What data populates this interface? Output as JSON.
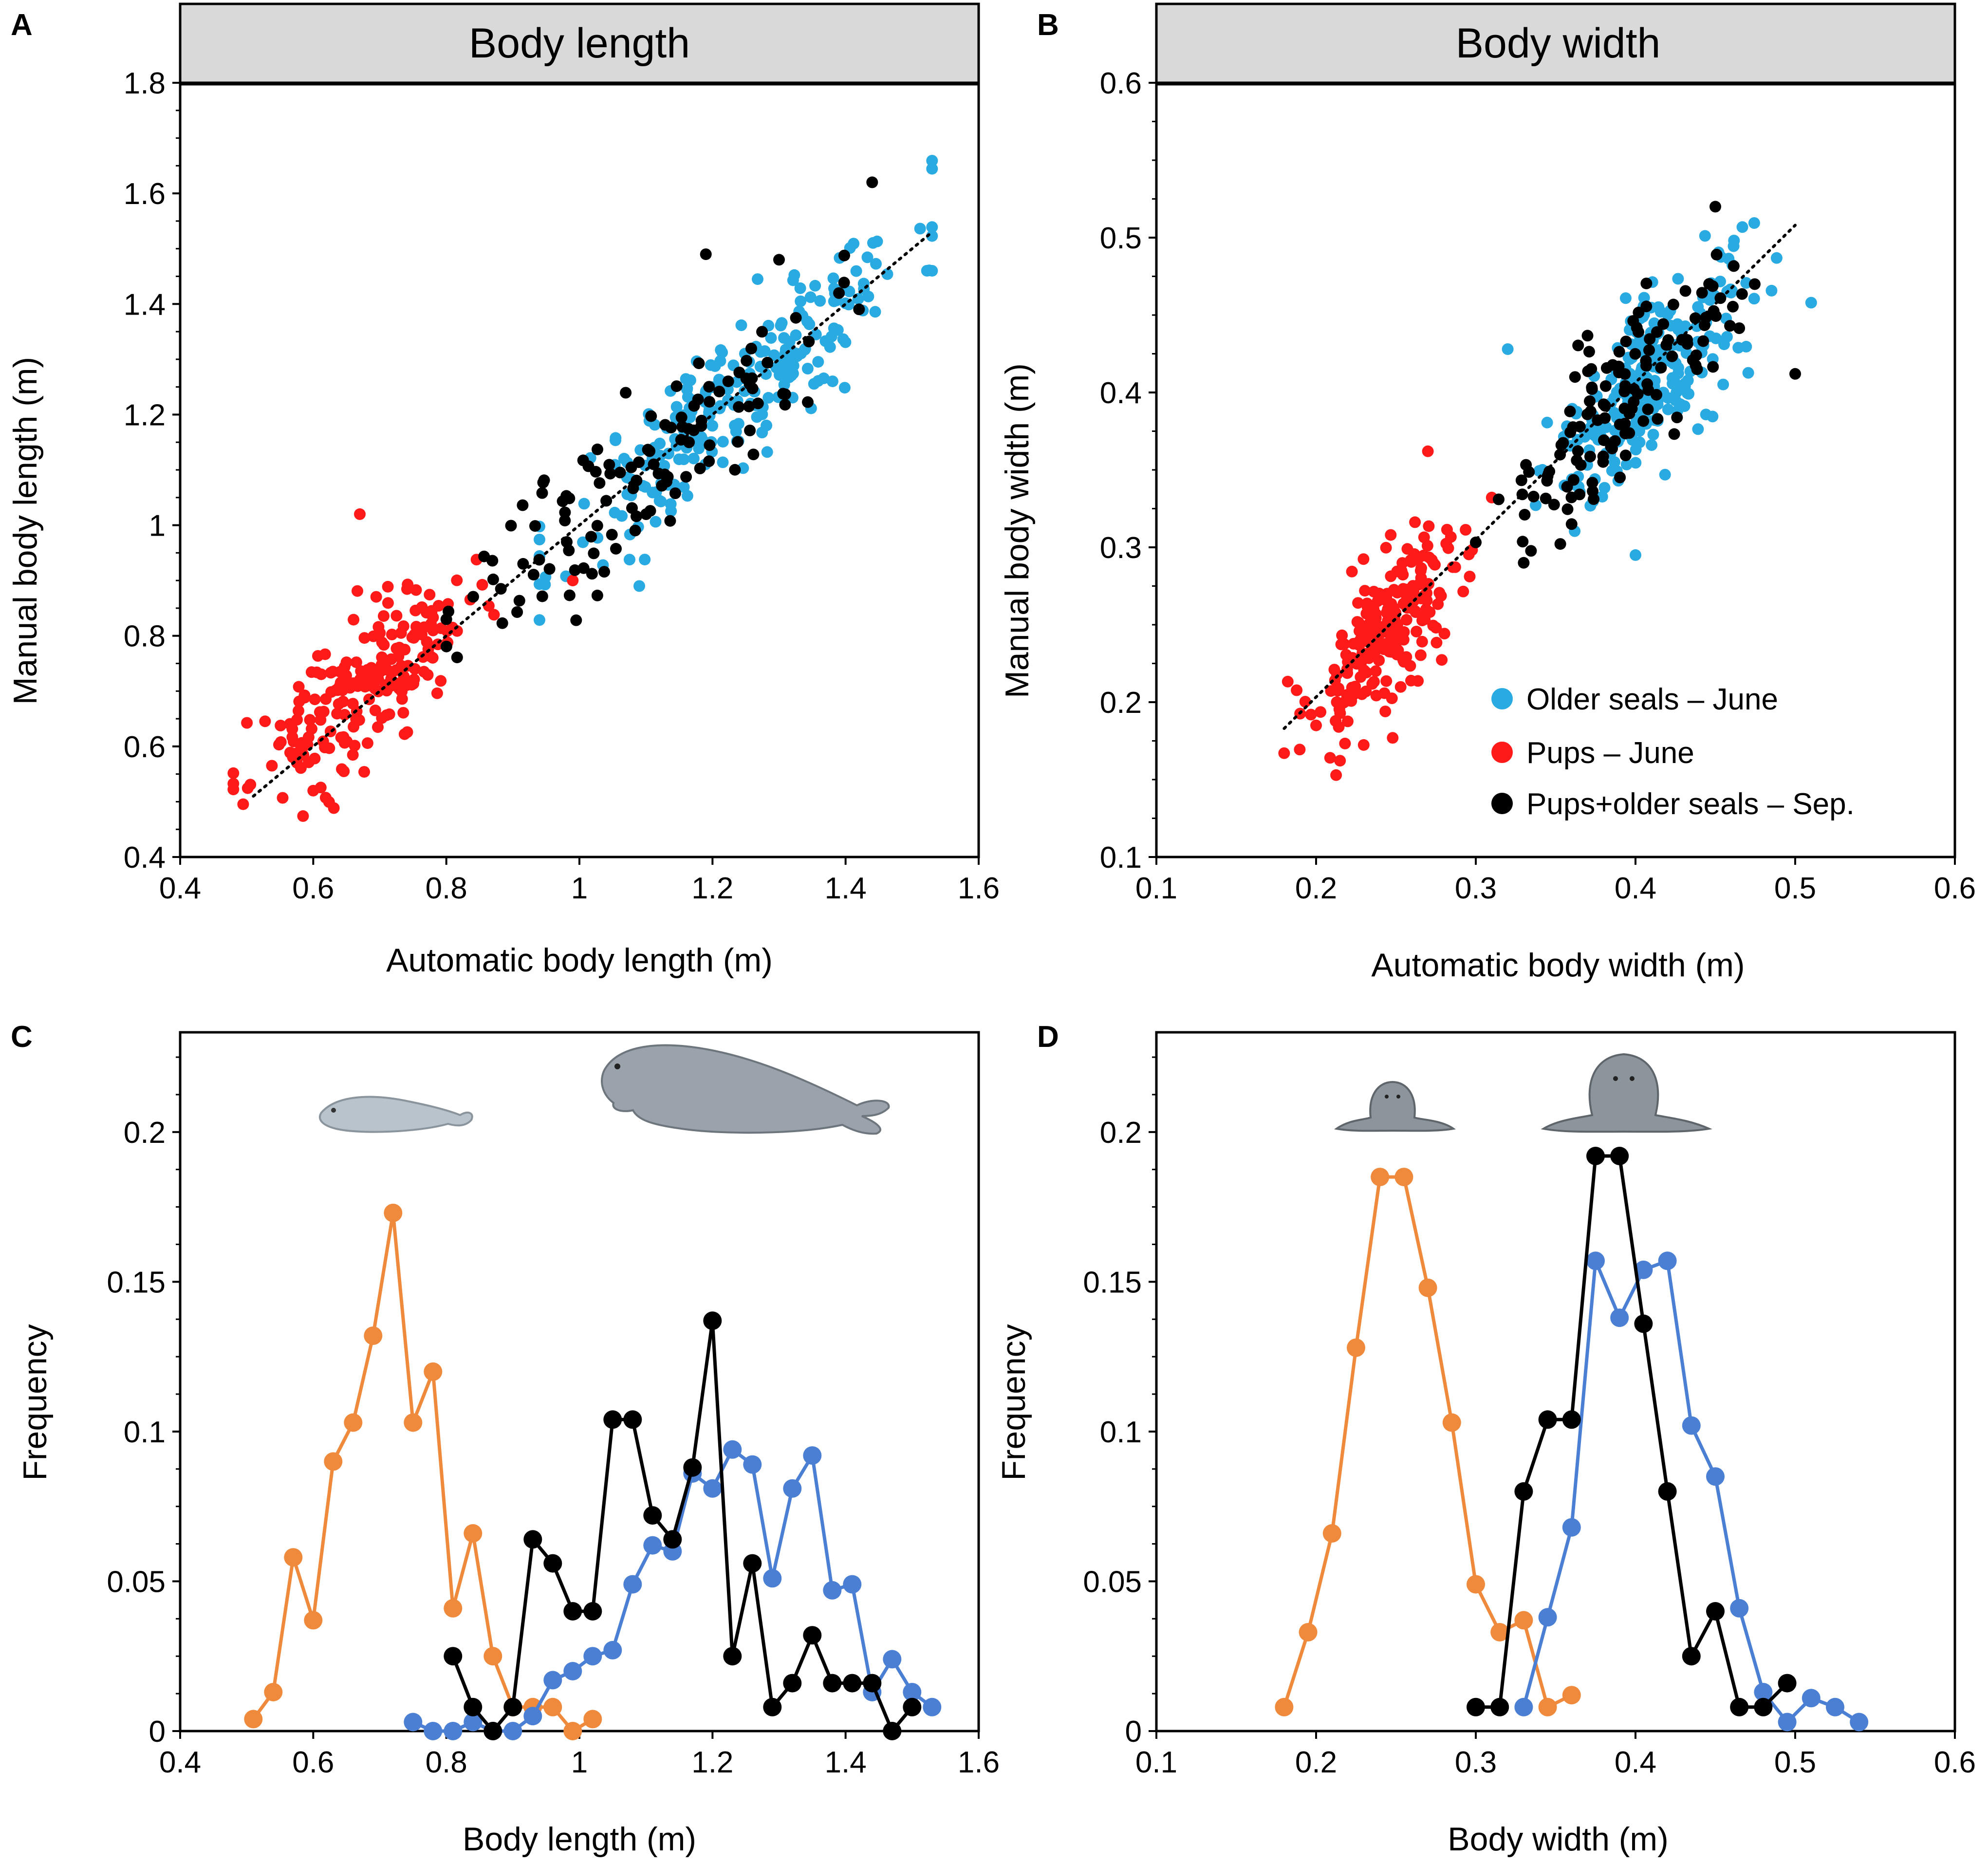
{
  "colors": {
    "older_june": "#29abe2",
    "pups_june": "#ff1a1a",
    "sep": "#000000",
    "hist_pups": "#ef8a3c",
    "hist_older": "#4a7fd4",
    "hist_sep": "#000000",
    "title_box": "#d9d9d9"
  },
  "chart_data": [
    {
      "panel": "A",
      "type": "scatter",
      "title": "Body length",
      "xlabel": "Automatic body length (m)",
      "ylabel": "Manual body length (m)",
      "xlim": [
        0.4,
        1.6
      ],
      "ylim": [
        0.4,
        1.8
      ],
      "xticks": [
        0.4,
        0.6,
        0.8,
        1,
        1.2,
        1.4,
        1.6
      ],
      "xtick_labels": [
        "0.4",
        "0.6",
        "0.8",
        "1",
        "1.2",
        "1.4",
        "1.6"
      ],
      "yticks": [
        0.4,
        0.6,
        0.8,
        1,
        1.2,
        1.4,
        1.6,
        1.8
      ],
      "ytick_labels": [
        "0.4",
        "0.6",
        "0.8",
        "1",
        "1.2",
        "1.4",
        "1.6",
        "1.8"
      ],
      "reference_line": {
        "style": "dotted",
        "x": [
          0.51,
          1.53
        ],
        "y": [
          0.51,
          1.53
        ]
      },
      "series": [
        {
          "name": "Older seals – June",
          "color_key": "older_june",
          "count": 250,
          "x_range": [
            0.94,
            1.53
          ],
          "mean_x": 1.24,
          "sd_x": 0.13,
          "noise": 0.065,
          "slope": 1.0,
          "intercept": 0.0,
          "seed": 11,
          "outliers": [
            [
              1.09,
              0.89
            ]
          ]
        },
        {
          "name": "Pups – June",
          "color_key": "pups_june",
          "count": 210,
          "x_range": [
            0.48,
            0.89
          ],
          "mean_x": 0.67,
          "sd_x": 0.08,
          "noise": 0.06,
          "slope": 0.85,
          "intercept": 0.13,
          "seed": 23,
          "outliers": [
            [
              0.67,
              1.02
            ],
            [
              0.6,
              0.52
            ],
            [
              0.99,
              0.9
            ]
          ]
        },
        {
          "name": "Pups+older seals – Sep.",
          "color_key": "sep",
          "count": 120,
          "x_range": [
            0.8,
            1.5
          ],
          "mean_x": 1.1,
          "sd_x": 0.14,
          "noise": 0.07,
          "slope": 1.0,
          "intercept": 0.0,
          "seed": 37,
          "outliers": [
            [
              1.44,
              1.62
            ],
            [
              1.19,
              1.49
            ],
            [
              1.3,
              1.48
            ]
          ]
        }
      ]
    },
    {
      "panel": "B",
      "type": "scatter",
      "title": "Body width",
      "xlabel": "Automatic body width (m)",
      "ylabel": "Manual body width (m)",
      "xlim": [
        0.1,
        0.6
      ],
      "ylim": [
        0.1,
        0.6
      ],
      "xticks": [
        0.1,
        0.2,
        0.3,
        0.4,
        0.5,
        0.6
      ],
      "xtick_labels": [
        "0.1",
        "0.2",
        "0.3",
        "0.4",
        "0.5",
        "0.6"
      ],
      "yticks": [
        0.1,
        0.2,
        0.3,
        0.4,
        0.5,
        0.6
      ],
      "ytick_labels": [
        "0.1",
        "0.2",
        "0.3",
        "0.4",
        "0.5",
        "0.6"
      ],
      "reference_line": {
        "style": "dotted",
        "x": [
          0.18,
          0.5
        ],
        "y": [
          0.183,
          0.508
        ]
      },
      "legend": {
        "placement": "bottom-right",
        "entries": [
          {
            "label": "Older seals – June",
            "color_key": "older_june"
          },
          {
            "label": "Pups – June",
            "color_key": "pups_june"
          },
          {
            "label": "Pups+older seals – Sep.",
            "color_key": "sep"
          }
        ]
      },
      "series": [
        {
          "name": "Older seals – June",
          "color_key": "older_june",
          "count": 260,
          "x_range": [
            0.33,
            0.51
          ],
          "mean_x": 0.41,
          "sd_x": 0.03,
          "noise": 0.025,
          "slope": 1.0,
          "intercept": 0.0,
          "seed": 41,
          "outliers": [
            [
              0.4,
              0.295
            ],
            [
              0.32,
              0.428
            ],
            [
              0.51,
              0.458
            ]
          ]
        },
        {
          "name": "Pups – June",
          "color_key": "pups_june",
          "count": 230,
          "x_range": [
            0.18,
            0.31
          ],
          "mean_x": 0.245,
          "sd_x": 0.025,
          "noise": 0.025,
          "slope": 1.0,
          "intercept": 0.0,
          "seed": 53,
          "outliers": [
            [
              0.27,
              0.362
            ],
            [
              0.2,
              0.185
            ]
          ]
        },
        {
          "name": "Pups+older seals – Sep.",
          "color_key": "sep",
          "count": 130,
          "x_range": [
            0.3,
            0.5
          ],
          "mean_x": 0.39,
          "sd_x": 0.035,
          "noise": 0.025,
          "slope": 1.0,
          "intercept": 0.0,
          "seed": 67,
          "outliers": [
            [
              0.45,
              0.52
            ],
            [
              0.5,
              0.412
            ],
            [
              0.36,
              0.315
            ],
            [
              0.33,
              0.29
            ]
          ]
        }
      ]
    },
    {
      "panel": "C",
      "type": "line",
      "xlabel": "Body length (m)",
      "ylabel": "Frequency",
      "xlim": [
        0.4,
        1.6
      ],
      "ylim": [
        0,
        0.2333
      ],
      "xticks": [
        0.4,
        0.6,
        0.8,
        1,
        1.2,
        1.4,
        1.6
      ],
      "xtick_labels": [
        "0.4",
        "0.6",
        "0.8",
        "1",
        "1.2",
        "1.4",
        "1.6"
      ],
      "yticks": [
        0,
        0.05,
        0.1,
        0.15,
        0.2
      ],
      "ytick_labels": [
        "0",
        "0.05",
        "0.1",
        "0.15",
        "0.2"
      ],
      "icons": [
        "seal-pup-side",
        "adult-seal-side"
      ],
      "series": [
        {
          "name": "Pups – June",
          "color_key": "hist_pups",
          "x": [
            0.51,
            0.54,
            0.57,
            0.6,
            0.63,
            0.66,
            0.69,
            0.72,
            0.75,
            0.78,
            0.81,
            0.84,
            0.87,
            0.9,
            0.93,
            0.96,
            0.99,
            1.02
          ],
          "y": [
            0.004,
            0.013,
            0.058,
            0.037,
            0.09,
            0.103,
            0.132,
            0.173,
            0.103,
            0.12,
            0.041,
            0.066,
            0.025,
            0.008,
            0.008,
            0.008,
            0.0,
            0.004
          ]
        },
        {
          "name": "Older seals – June",
          "color_key": "hist_older",
          "x": [
            0.75,
            0.78,
            0.81,
            0.84,
            0.87,
            0.9,
            0.93,
            0.96,
            0.99,
            1.02,
            1.05,
            1.08,
            1.11,
            1.14,
            1.17,
            1.2,
            1.23,
            1.26,
            1.29,
            1.32,
            1.35,
            1.38,
            1.41,
            1.44,
            1.47,
            1.5,
            1.53
          ],
          "y": [
            0.003,
            0.0,
            0.0,
            0.003,
            0.0,
            0.0,
            0.005,
            0.017,
            0.02,
            0.025,
            0.027,
            0.049,
            0.062,
            0.06,
            0.086,
            0.081,
            0.094,
            0.089,
            0.051,
            0.081,
            0.092,
            0.047,
            0.049,
            0.013,
            0.024,
            0.013,
            0.008
          ]
        },
        {
          "name": "Pups+older seals – Sep.",
          "color_key": "hist_sep",
          "x": [
            0.81,
            0.84,
            0.87,
            0.9,
            0.93,
            0.96,
            0.99,
            1.02,
            1.05,
            1.08,
            1.11,
            1.14,
            1.17,
            1.2,
            1.23,
            1.26,
            1.29,
            1.32,
            1.35,
            1.38,
            1.41,
            1.44,
            1.47,
            1.5
          ],
          "y": [
            0.025,
            0.008,
            0.0,
            0.008,
            0.064,
            0.056,
            0.04,
            0.04,
            0.104,
            0.104,
            0.072,
            0.064,
            0.088,
            0.137,
            0.025,
            0.056,
            0.008,
            0.016,
            0.032,
            0.016,
            0.016,
            0.016,
            0.0,
            0.008
          ]
        }
      ]
    },
    {
      "panel": "D",
      "type": "line",
      "xlabel": "Body width (m)",
      "ylabel": "Frequency",
      "xlim": [
        0.1,
        0.6
      ],
      "ylim": [
        0,
        0.2333
      ],
      "xticks": [
        0.1,
        0.2,
        0.3,
        0.4,
        0.5,
        0.6
      ],
      "xtick_labels": [
        "0.1",
        "0.2",
        "0.3",
        "0.4",
        "0.5",
        "0.6"
      ],
      "yticks": [
        0,
        0.05,
        0.1,
        0.15,
        0.2
      ],
      "ytick_labels": [
        "0",
        "0.05",
        "0.1",
        "0.15",
        "0.2"
      ],
      "icons": [
        "seal-pup-front",
        "adult-seal-front"
      ],
      "series": [
        {
          "name": "Pups – June",
          "color_key": "hist_pups",
          "x": [
            0.18,
            0.195,
            0.21,
            0.225,
            0.24,
            0.255,
            0.27,
            0.285,
            0.3,
            0.315,
            0.33,
            0.345,
            0.36
          ],
          "y": [
            0.008,
            0.033,
            0.066,
            0.128,
            0.185,
            0.185,
            0.148,
            0.103,
            0.049,
            0.033,
            0.037,
            0.008,
            0.012
          ]
        },
        {
          "name": "Older seals – June",
          "color_key": "hist_older",
          "x": [
            0.33,
            0.345,
            0.36,
            0.375,
            0.39,
            0.405,
            0.42,
            0.435,
            0.45,
            0.465,
            0.48,
            0.495,
            0.51,
            0.525,
            0.54
          ],
          "y": [
            0.008,
            0.038,
            0.068,
            0.157,
            0.138,
            0.154,
            0.157,
            0.102,
            0.085,
            0.041,
            0.013,
            0.003,
            0.011,
            0.008,
            0.003
          ]
        },
        {
          "name": "Pups+older seals – Sep.",
          "color_key": "hist_sep",
          "x": [
            0.3,
            0.315,
            0.33,
            0.345,
            0.36,
            0.375,
            0.39,
            0.405,
            0.42,
            0.435,
            0.45,
            0.465,
            0.48,
            0.495
          ],
          "y": [
            0.008,
            0.008,
            0.08,
            0.104,
            0.104,
            0.192,
            0.192,
            0.136,
            0.08,
            0.025,
            0.04,
            0.008,
            0.008,
            0.016
          ]
        }
      ]
    }
  ]
}
